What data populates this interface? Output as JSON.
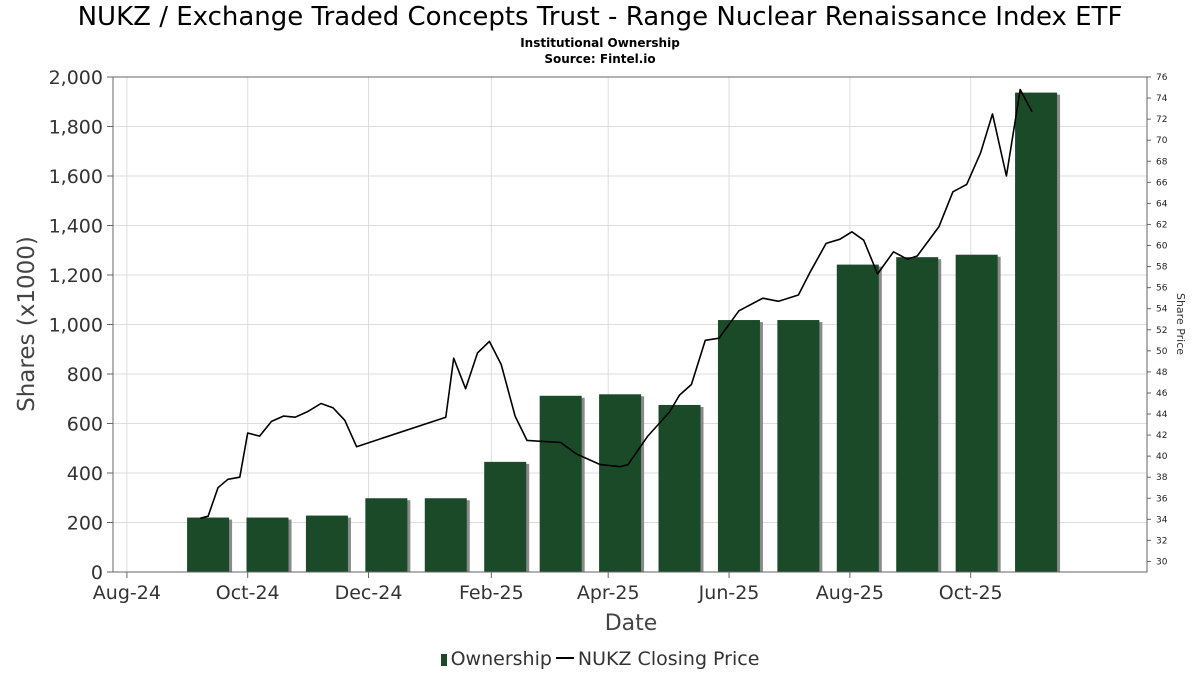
{
  "title": "NUKZ / Exchange Traded Concepts Trust - Range Nuclear Renaissance Index ETF",
  "subtitle": "Institutional Ownership",
  "source": "Source: Fintel.io",
  "chart_data": {
    "type": "bar",
    "xlabel": "Date",
    "ylabel": "Shares (x1000)",
    "y2label": "Share Price",
    "ylim": [
      0,
      2000
    ],
    "y_ticks": [
      0,
      200,
      400,
      600,
      800,
      1000,
      1200,
      1400,
      1600,
      1800,
      2000
    ],
    "y2lim": [
      29,
      76
    ],
    "y2_ticks": [
      30,
      32,
      34,
      36,
      38,
      40,
      42,
      44,
      46,
      48,
      50,
      52,
      54,
      56,
      58,
      60,
      62,
      64,
      66,
      68,
      70,
      72,
      74,
      76
    ],
    "x_range": [
      "2024-07-25",
      "2025-12-29"
    ],
    "x_ticks": [
      {
        "date": "2024-08-01",
        "label": "Aug-24"
      },
      {
        "date": "2024-10-01",
        "label": "Oct-24"
      },
      {
        "date": "2024-12-01",
        "label": "Dec-24"
      },
      {
        "date": "2025-02-01",
        "label": "Feb-25"
      },
      {
        "date": "2025-04-01",
        "label": "Apr-25"
      },
      {
        "date": "2025-06-01",
        "label": "Jun-25"
      },
      {
        "date": "2025-08-01",
        "label": "Aug-25"
      },
      {
        "date": "2025-10-01",
        "label": "Oct-25"
      }
    ],
    "grid": true,
    "legend_position": "bottom",
    "series": [
      {
        "name": "Ownership",
        "type": "bar",
        "color": "#1a4a28",
        "points": [
          {
            "date": "2024-09-11",
            "value": 220
          },
          {
            "date": "2024-10-11",
            "value": 220
          },
          {
            "date": "2024-11-10",
            "value": 228
          },
          {
            "date": "2024-12-10",
            "value": 298
          },
          {
            "date": "2025-01-09",
            "value": 298
          },
          {
            "date": "2025-02-08",
            "value": 445
          },
          {
            "date": "2025-03-08",
            "value": 712
          },
          {
            "date": "2025-04-07",
            "value": 718
          },
          {
            "date": "2025-05-07",
            "value": 675
          },
          {
            "date": "2025-06-06",
            "value": 1018
          },
          {
            "date": "2025-07-06",
            "value": 1018
          },
          {
            "date": "2025-08-05",
            "value": 1242
          },
          {
            "date": "2025-09-04",
            "value": 1272
          },
          {
            "date": "2025-10-04",
            "value": 1282
          },
          {
            "date": "2025-11-03",
            "value": 1937
          }
        ]
      },
      {
        "name": "NUKZ Closing Price",
        "type": "line",
        "color": "#000000",
        "points": [
          {
            "date": "2024-09-07",
            "value": 34.1
          },
          {
            "date": "2024-09-11",
            "value": 34.3
          },
          {
            "date": "2024-09-16",
            "value": 37.0
          },
          {
            "date": "2024-09-21",
            "value": 37.8
          },
          {
            "date": "2024-09-27",
            "value": 38.0
          },
          {
            "date": "2024-10-01",
            "value": 42.2
          },
          {
            "date": "2024-10-07",
            "value": 41.9
          },
          {
            "date": "2024-10-13",
            "value": 43.3
          },
          {
            "date": "2024-10-19",
            "value": 43.8
          },
          {
            "date": "2024-10-25",
            "value": 43.7
          },
          {
            "date": "2024-10-31",
            "value": 44.2
          },
          {
            "date": "2024-11-07",
            "value": 45.0
          },
          {
            "date": "2024-11-13",
            "value": 44.6
          },
          {
            "date": "2024-11-19",
            "value": 43.4
          },
          {
            "date": "2024-11-25",
            "value": 40.9
          },
          {
            "date": "2025-01-09",
            "value": 43.7
          },
          {
            "date": "2025-01-13",
            "value": 49.3
          },
          {
            "date": "2025-01-19",
            "value": 46.4
          },
          {
            "date": "2025-01-25",
            "value": 49.8
          },
          {
            "date": "2025-01-31",
            "value": 50.9
          },
          {
            "date": "2025-02-06",
            "value": 48.7
          },
          {
            "date": "2025-02-13",
            "value": 43.8
          },
          {
            "date": "2025-02-19",
            "value": 41.5
          },
          {
            "date": "2025-03-08",
            "value": 41.3
          },
          {
            "date": "2025-03-16",
            "value": 40.2
          },
          {
            "date": "2025-03-28",
            "value": 39.2
          },
          {
            "date": "2025-04-07",
            "value": 39.0
          },
          {
            "date": "2025-04-11",
            "value": 39.2
          },
          {
            "date": "2025-04-21",
            "value": 41.9
          },
          {
            "date": "2025-05-02",
            "value": 44.2
          },
          {
            "date": "2025-05-07",
            "value": 45.8
          },
          {
            "date": "2025-05-13",
            "value": 46.8
          },
          {
            "date": "2025-05-20",
            "value": 51.0
          },
          {
            "date": "2025-05-27",
            "value": 51.2
          },
          {
            "date": "2025-06-06",
            "value": 53.8
          },
          {
            "date": "2025-06-18",
            "value": 55.0
          },
          {
            "date": "2025-06-26",
            "value": 54.7
          },
          {
            "date": "2025-07-06",
            "value": 55.3
          },
          {
            "date": "2025-07-12",
            "value": 57.5
          },
          {
            "date": "2025-07-20",
            "value": 60.2
          },
          {
            "date": "2025-07-27",
            "value": 60.6
          },
          {
            "date": "2025-08-02",
            "value": 61.3
          },
          {
            "date": "2025-08-08",
            "value": 60.5
          },
          {
            "date": "2025-08-15",
            "value": 57.3
          },
          {
            "date": "2025-08-23",
            "value": 59.4
          },
          {
            "date": "2025-08-30",
            "value": 58.7
          },
          {
            "date": "2025-09-04",
            "value": 59.0
          },
          {
            "date": "2025-09-15",
            "value": 61.8
          },
          {
            "date": "2025-09-22",
            "value": 65.1
          },
          {
            "date": "2025-09-29",
            "value": 65.8
          },
          {
            "date": "2025-10-06",
            "value": 68.8
          },
          {
            "date": "2025-10-12",
            "value": 72.5
          },
          {
            "date": "2025-10-19",
            "value": 66.6
          },
          {
            "date": "2025-10-26",
            "value": 74.8
          },
          {
            "date": "2025-11-01",
            "value": 72.7
          }
        ]
      }
    ]
  }
}
